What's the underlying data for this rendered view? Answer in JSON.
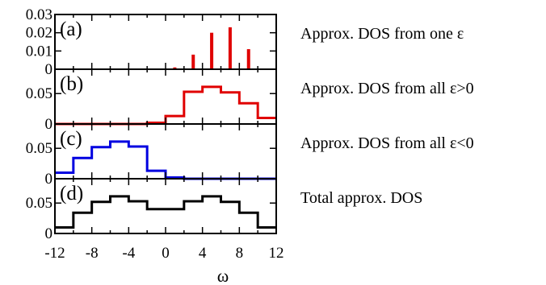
{
  "chart_data": {
    "type": "line",
    "xlabel": "ω",
    "xlim": [
      -12,
      12
    ],
    "x_ticks": [
      "-12",
      "-8",
      "-4",
      "0",
      "4",
      "8",
      "12"
    ],
    "x_tick_values": [
      -12,
      -8,
      -4,
      0,
      4,
      8,
      12
    ],
    "x_minor_ticks": [
      -10,
      -6,
      -2,
      2,
      6,
      10
    ],
    "grid": false,
    "legend": "none",
    "panels": [
      {
        "letter": "(a)",
        "description": "Approx. DOS from one ε",
        "style": "spikes",
        "color": "#e00000",
        "ylim": [
          0,
          0.03
        ],
        "y_ticks": [
          "0",
          "0.01",
          "0.02",
          "0.03"
        ],
        "y_tick_values": [
          0,
          0.01,
          0.02,
          0.03
        ],
        "points": [
          {
            "x": 1,
            "y": 0.001
          },
          {
            "x": 3,
            "y": 0.008
          },
          {
            "x": 5,
            "y": 0.02
          },
          {
            "x": 7,
            "y": 0.023
          },
          {
            "x": 9,
            "y": 0.011
          }
        ]
      },
      {
        "letter": "(b)",
        "description": "Approx. DOS from all ε>0",
        "style": "step",
        "color": "#e00000",
        "ylim": [
          0,
          0.09
        ],
        "y_ticks": [
          "0",
          "0.05"
        ],
        "y_tick_values": [
          0,
          0.05
        ],
        "bins": [
          {
            "from": -12,
            "to": -2,
            "y": 0
          },
          {
            "from": -2,
            "to": 0,
            "y": 0.002
          },
          {
            "from": 0,
            "to": 2,
            "y": 0.013
          },
          {
            "from": 2,
            "to": 4,
            "y": 0.053
          },
          {
            "from": 4,
            "to": 6,
            "y": 0.061
          },
          {
            "from": 6,
            "to": 8,
            "y": 0.052
          },
          {
            "from": 8,
            "to": 10,
            "y": 0.034
          },
          {
            "from": 10,
            "to": 12,
            "y": 0.01
          }
        ]
      },
      {
        "letter": "(c)",
        "description": "Approx. DOS from all ε<0",
        "style": "step",
        "color": "#0000e0",
        "ylim": [
          0,
          0.09
        ],
        "y_ticks": [
          "0",
          "0.05"
        ],
        "y_tick_values": [
          0,
          0.05
        ],
        "bins": [
          {
            "from": -12,
            "to": -10,
            "y": 0.01
          },
          {
            "from": -10,
            "to": -8,
            "y": 0.034
          },
          {
            "from": -8,
            "to": -6,
            "y": 0.052
          },
          {
            "from": -6,
            "to": -4,
            "y": 0.061
          },
          {
            "from": -4,
            "to": -2,
            "y": 0.053
          },
          {
            "from": -2,
            "to": 0,
            "y": 0.013
          },
          {
            "from": 0,
            "to": 2,
            "y": 0.002
          },
          {
            "from": 2,
            "to": 12,
            "y": 0
          }
        ]
      },
      {
        "letter": "(d)",
        "description": "Total approx. DOS",
        "style": "step",
        "color": "#000000",
        "ylim": [
          0,
          0.09
        ],
        "y_ticks": [
          "0",
          "0.05"
        ],
        "y_tick_values": [
          0,
          0.05
        ],
        "bins": [
          {
            "from": -12,
            "to": -10,
            "y": 0.01
          },
          {
            "from": -10,
            "to": -8,
            "y": 0.034
          },
          {
            "from": -8,
            "to": -6,
            "y": 0.052
          },
          {
            "from": -6,
            "to": -4,
            "y": 0.061
          },
          {
            "from": -4,
            "to": -2,
            "y": 0.053
          },
          {
            "from": -2,
            "to": 2,
            "y": 0.04
          },
          {
            "from": 2,
            "to": 4,
            "y": 0.053
          },
          {
            "from": 4,
            "to": 6,
            "y": 0.061
          },
          {
            "from": 6,
            "to": 8,
            "y": 0.052
          },
          {
            "from": 8,
            "to": 10,
            "y": 0.034
          },
          {
            "from": 10,
            "to": 12,
            "y": 0.01
          }
        ]
      }
    ]
  }
}
